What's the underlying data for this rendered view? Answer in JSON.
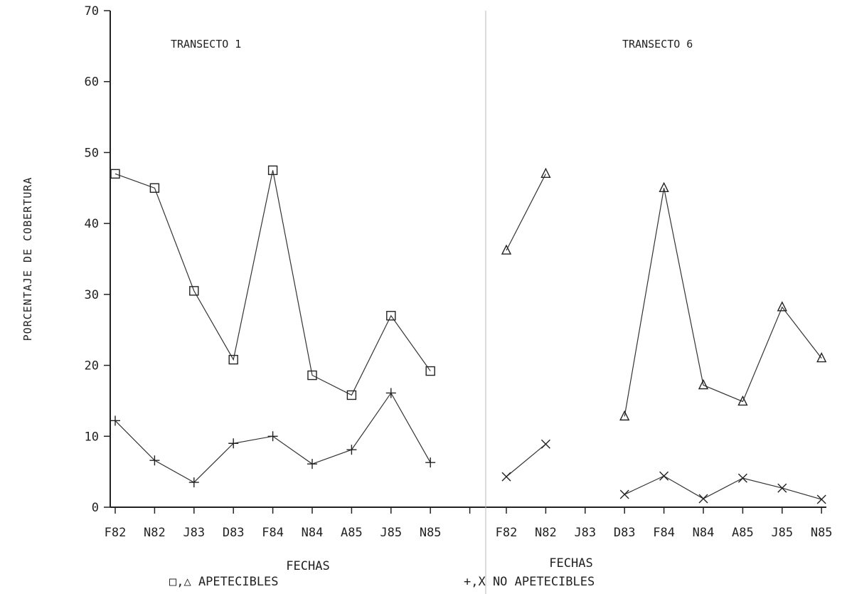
{
  "chart_data": {
    "type": "line",
    "ylabel": "PORCENTAJE DE COBERTURA",
    "ylim": [
      0,
      70
    ],
    "yticks": [
      "0",
      "10",
      "20",
      "30",
      "40",
      "50",
      "60",
      "70"
    ],
    "xlabel_left": "FECHAS",
    "xlabel_right": "FECHAS",
    "legend": {
      "apetecibles": "□,△  APETECIBLES",
      "no_apetecibles": "+,X  NO APETECIBLES"
    },
    "panels": [
      {
        "title": "TRANSECTO 1",
        "categories": [
          "F82",
          "N82",
          "J83",
          "D83",
          "F84",
          "N84",
          "A85",
          "J85",
          "N85"
        ],
        "series": [
          {
            "marker": "square",
            "values": [
              47,
              45,
              30.5,
              20.8,
              47.5,
              18.6,
              15.8,
              27,
              19.2
            ]
          },
          {
            "marker": "plus",
            "values": [
              12.2,
              6.6,
              3.5,
              9,
              10,
              6.1,
              8.1,
              16.1,
              6.3
            ]
          }
        ]
      },
      {
        "title": "TRANSECTO 6",
        "categories": [
          "F82",
          "N82",
          "J83",
          "D83",
          "F84",
          "N84",
          "A85",
          "J85",
          "N85"
        ],
        "series": [
          {
            "marker": "triangle",
            "values": [
              36.2,
              47,
              null,
              12.8,
              45,
              17.2,
              14.9,
              28.2,
              21
            ]
          },
          {
            "marker": "x",
            "values": [
              4.3,
              8.9,
              null,
              1.8,
              4.4,
              1.2,
              4.1,
              2.7,
              1.1
            ]
          }
        ]
      }
    ]
  }
}
